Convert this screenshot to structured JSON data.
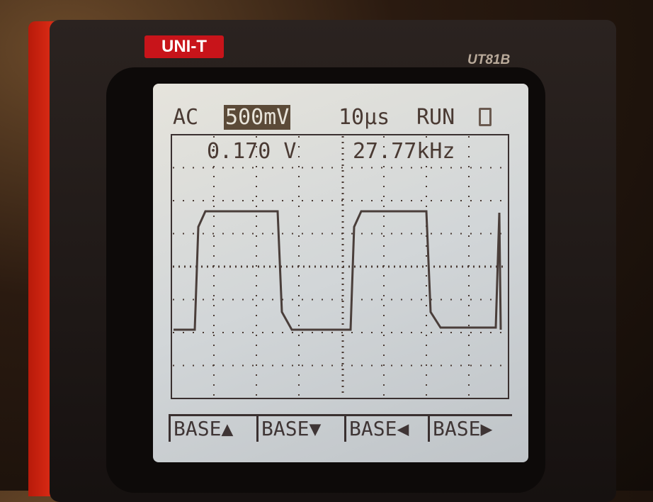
{
  "device": {
    "brand": "UNI-T",
    "model": "UT81B"
  },
  "status": {
    "coupling": "AC",
    "volts_div": "500mV",
    "time_div": "10µs",
    "run_state": "RUN",
    "battery_icon": "battery-icon"
  },
  "readout": {
    "voltage": "0.170 V",
    "frequency": "27.77kHz"
  },
  "softkeys": [
    {
      "label": "BASE",
      "icon": "▲"
    },
    {
      "label": "BASE",
      "icon": "▼"
    },
    {
      "label": "BASE",
      "icon": "◀"
    },
    {
      "label": "BASE",
      "icon": "▶"
    }
  ],
  "colors": {
    "lcd_bg": "#d6d8d6",
    "lcd_fg": "#4a3a33",
    "bezel_red": "#e8321a"
  }
}
